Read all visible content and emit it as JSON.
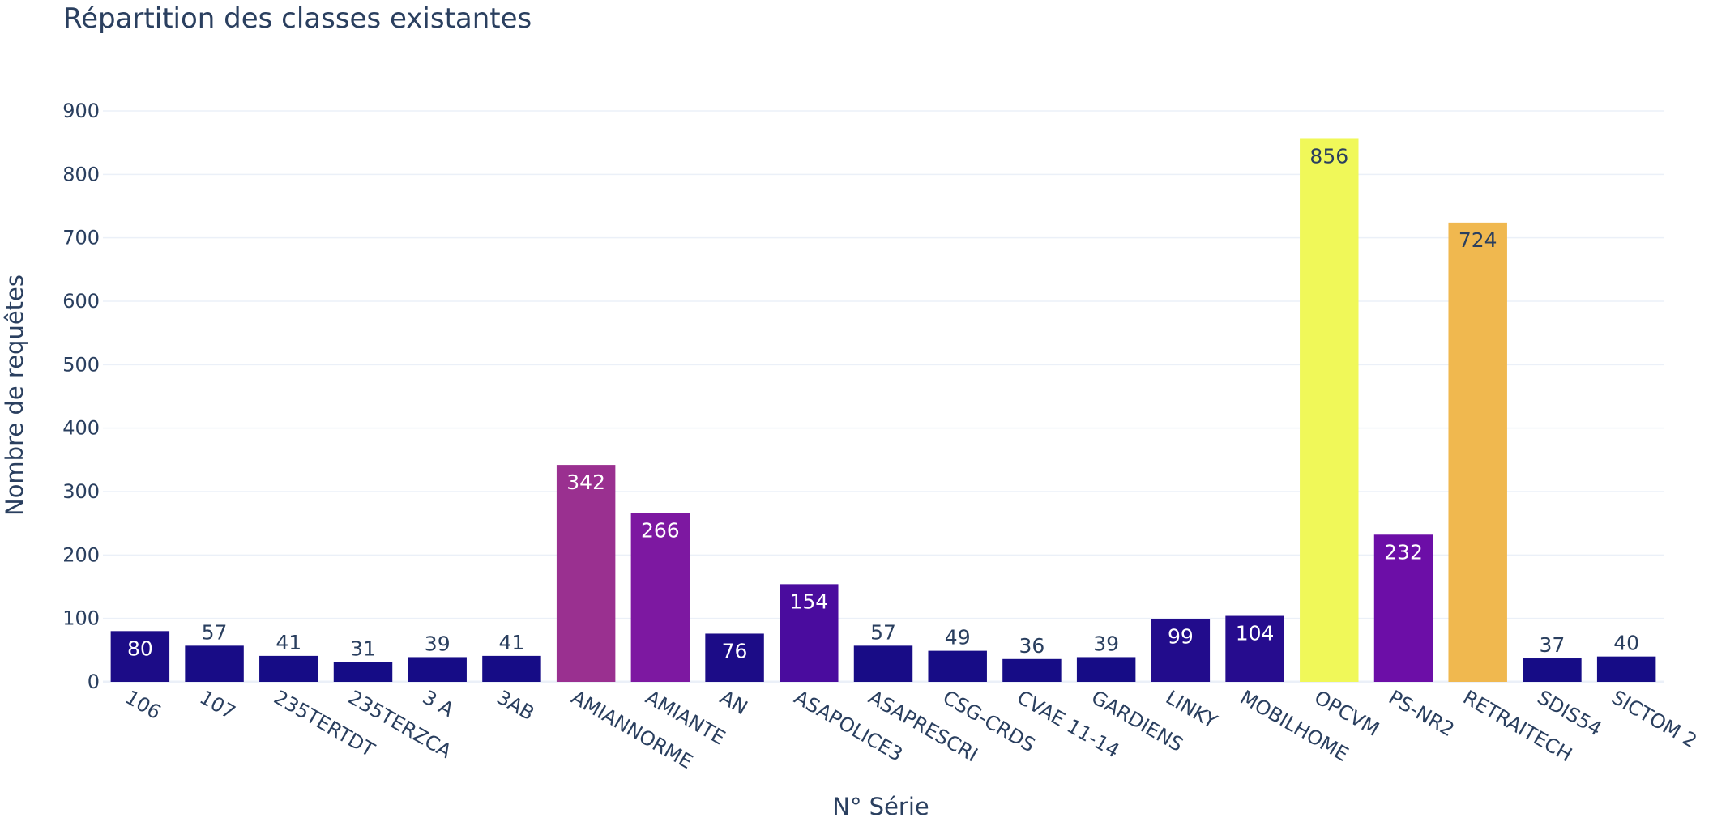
{
  "chart_data": {
    "type": "bar",
    "title": "Répartition des classes existantes",
    "xlabel": "N° Série",
    "ylabel": "Nombre de requêtes",
    "ylim": [
      0,
      900
    ],
    "yticks": [
      0,
      100,
      200,
      300,
      400,
      500,
      600,
      700,
      800,
      900
    ],
    "grid": true,
    "colorscale": "plasma",
    "categories": [
      "106",
      "107",
      "235TERTDT",
      "235TERZCA",
      "3 A",
      "3AB",
      "AMIANNORME",
      "AMIANTE",
      "AN",
      "ASAPOLICE3",
      "ASAPRESCRI",
      "CSG-CRDS",
      "CVAE 11-14",
      "GARDIENS",
      "LINKY",
      "MOBILHOME",
      "OPCVM",
      "PS-NR2",
      "RETRAITECH",
      "SDIS54",
      "SICTOM 2"
    ],
    "values": [
      80,
      57,
      41,
      31,
      39,
      41,
      342,
      266,
      76,
      154,
      57,
      49,
      36,
      39,
      99,
      104,
      856,
      232,
      724,
      37,
      40
    ],
    "colors": [
      "#1c0c87",
      "#180c86",
      "#160c86",
      "#150c86",
      "#160c86",
      "#160c86",
      "#9a3090",
      "#7d18a1",
      "#1c0c87",
      "#4a0c9e",
      "#180c86",
      "#170c86",
      "#160c86",
      "#160c86",
      "#220c8c",
      "#260c8e",
      "#f0f859",
      "#6c0ea7",
      "#f0b84f",
      "#160c86",
      "#160c86"
    ]
  }
}
